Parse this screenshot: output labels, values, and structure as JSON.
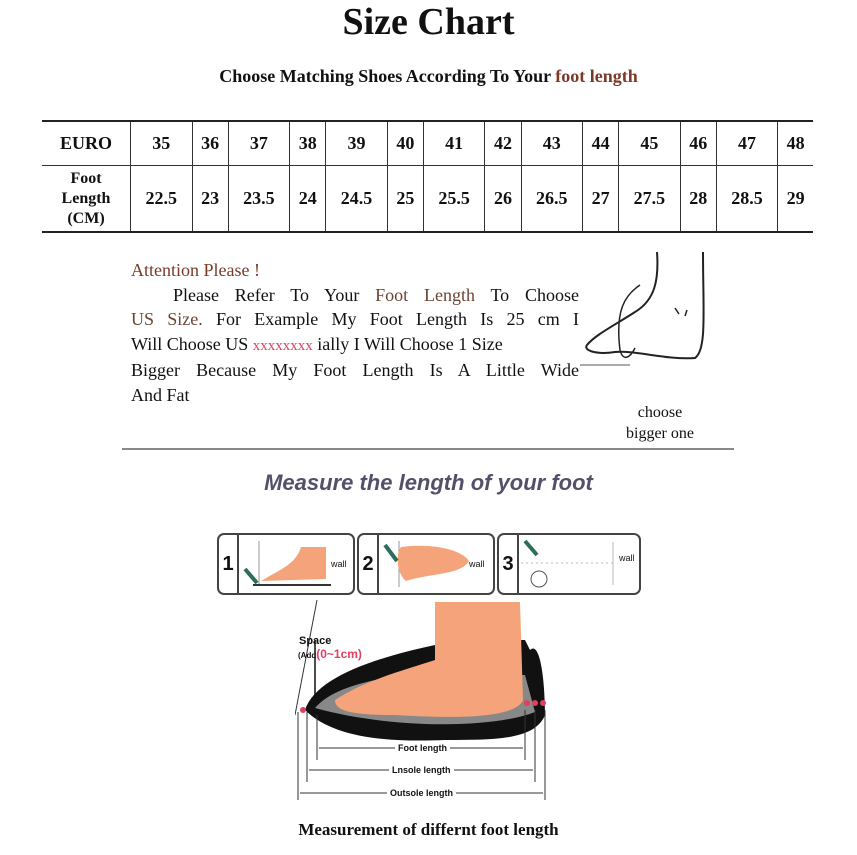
{
  "title": "Size Chart",
  "subtitle": {
    "prefix": "Choose Matching Shoes According To Your ",
    "highlight": "foot length"
  },
  "table": {
    "row_headers": [
      "EURO",
      "Foot Length (CM)"
    ],
    "euro": [
      "35",
      "36",
      "37",
      "38",
      "39",
      "40",
      "41",
      "42",
      "43",
      "44",
      "45",
      "46",
      "47",
      "48"
    ],
    "foot_length_cm": [
      "22.5",
      "23",
      "23.5",
      "24",
      "24.5",
      "25",
      "25.5",
      "26",
      "26.5",
      "27",
      "27.5",
      "28",
      "28.5",
      "29"
    ]
  },
  "note": {
    "heading": "Attention Please !",
    "l1a": "Please Refer To Your ",
    "l1b": "Foot Length",
    "l1c": " To Choose",
    "l2a": "US Size.",
    "l2b": " For Example My Foot Length Is 25 cm I",
    "l3a": "Will Choose US ",
    "l3b": "xxxxxxxx",
    "l3c": " ially I Will Choose 1 Size",
    "l4": "Bigger Because My Foot Length Is A Little Wide",
    "l5": "And Fat"
  },
  "choose_label": [
    "choose",
    "bigger one"
  ],
  "measure_heading": "Measure the length of your foot",
  "steps": [
    {
      "num": "1",
      "wall": "wall"
    },
    {
      "num": "2",
      "wall": "wall"
    },
    {
      "num": "3",
      "wall": "wall"
    }
  ],
  "diagram": {
    "space": "Space",
    "add_prefix": "(Add",
    "add_value": "(0~1cm)",
    "foot_length": "Foot length",
    "insole_length": "Lnsole length",
    "outsole_length": "Outsole length"
  },
  "caption": "Measurement of differnt foot length",
  "colors": {
    "accent_brown": "#7a3a2a",
    "red": "#e04060",
    "skin": "#f5a37a"
  }
}
